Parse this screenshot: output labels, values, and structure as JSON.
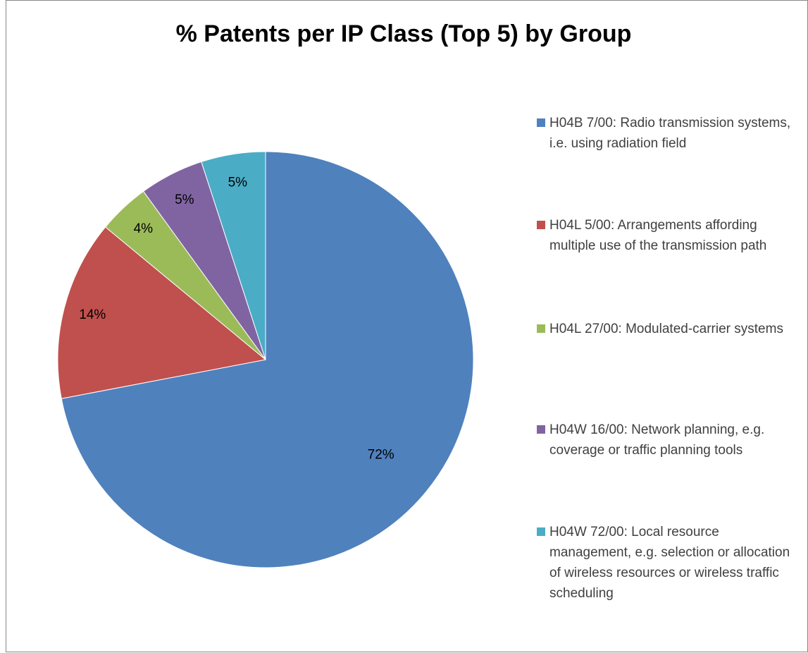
{
  "chart_data": {
    "type": "pie",
    "title": "% Patents per IP Class (Top 5) by Group",
    "categories": [
      "H04B 7/00: Radio transmission systems, i.e. using radiation field",
      "H04L 5/00: Arrangements affording multiple use of the transmission path",
      "H04L 27/00: Modulated-carrier systems",
      "H04W 16/00: Network planning, e.g. coverage or traffic planning tools",
      "H04W 72/00: Local resource management, e.g. selection or allocation of wireless resources or wireless traffic scheduling"
    ],
    "values": [
      72,
      14,
      4,
      5,
      5
    ],
    "value_labels": [
      "72%",
      "14%",
      "4%",
      "5%",
      "5%"
    ],
    "colors": [
      "#4f81bd",
      "#c0504d",
      "#9bbb59",
      "#8064a2",
      "#4bacc6"
    ],
    "legend": "right"
  }
}
